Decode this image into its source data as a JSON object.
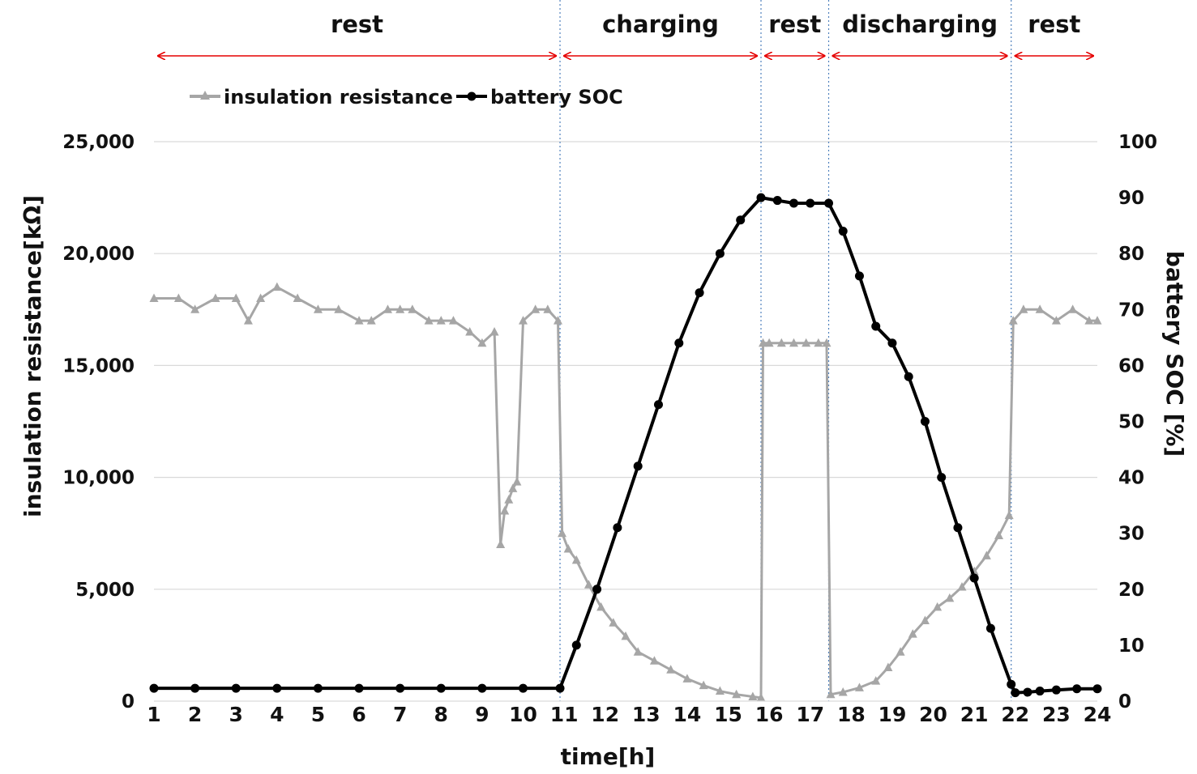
{
  "chart_data": {
    "type": "line",
    "xlabel": "time[h]",
    "ylabel": "insulation resistance[kΩ]",
    "y2label": "battery SOC [%]",
    "xlim": [
      1,
      24
    ],
    "ylim": [
      0,
      25000
    ],
    "y2lim": [
      0,
      100
    ],
    "x_ticks": [
      "1",
      "2",
      "3",
      "4",
      "5",
      "6",
      "7",
      "8",
      "9",
      "10",
      "11",
      "12",
      "13",
      "14",
      "15",
      "16",
      "17",
      "18",
      "19",
      "20",
      "21",
      "22",
      "23",
      "24"
    ],
    "y_ticks": [
      "0",
      "5,000",
      "10,000",
      "15,000",
      "20,000",
      "25,000"
    ],
    "y2_ticks": [
      "0",
      "10",
      "20",
      "30",
      "40",
      "50",
      "60",
      "70",
      "80",
      "90",
      "100"
    ],
    "grid": "horizontal",
    "legend_position": "top-left",
    "phase_boundaries": [
      10.9,
      15.8,
      17.45,
      21.9
    ],
    "phases": [
      {
        "label": "rest",
        "start": 1,
        "end": 10.9
      },
      {
        "label": "charging",
        "start": 10.9,
        "end": 15.8
      },
      {
        "label": "rest",
        "start": 15.8,
        "end": 17.45
      },
      {
        "label": "discharging",
        "start": 17.45,
        "end": 21.9
      },
      {
        "label": "rest",
        "start": 21.9,
        "end": 24
      }
    ],
    "series": [
      {
        "name": "insulation resistance",
        "axis": "left",
        "color": "#a6a6a6",
        "marker": "triangle",
        "x": [
          1,
          1.6,
          2.0,
          2.5,
          3.0,
          3.3,
          3.6,
          4.0,
          4.5,
          5.0,
          5.5,
          6.0,
          6.3,
          6.7,
          7.0,
          7.3,
          7.7,
          8.0,
          8.3,
          8.7,
          9.0,
          9.3,
          9.45,
          9.55,
          9.65,
          9.75,
          9.85,
          10.0,
          10.3,
          10.6,
          10.85,
          10.95,
          11.1,
          11.3,
          11.6,
          11.9,
          12.2,
          12.5,
          12.8,
          13.2,
          13.6,
          14.0,
          14.4,
          14.8,
          15.2,
          15.6,
          15.8,
          15.85,
          16.0,
          16.3,
          16.6,
          16.9,
          17.2,
          17.4,
          17.5,
          17.8,
          18.2,
          18.6,
          18.9,
          19.2,
          19.5,
          19.8,
          20.1,
          20.4,
          20.7,
          21.0,
          21.3,
          21.6,
          21.85,
          21.95,
          22.2,
          22.6,
          23.0,
          23.4,
          23.8,
          24.0
        ],
        "y": [
          18000,
          18000,
          17500,
          18000,
          18000,
          17000,
          18000,
          18500,
          18000,
          17500,
          17500,
          17000,
          17000,
          17500,
          17500,
          17500,
          17000,
          17000,
          17000,
          16500,
          16000,
          16500,
          7000,
          8500,
          9000,
          9500,
          9800,
          17000,
          17500,
          17500,
          17000,
          7500,
          6800,
          6300,
          5200,
          4200,
          3500,
          2900,
          2200,
          1800,
          1400,
          1000,
          700,
          450,
          300,
          200,
          150,
          16000,
          16000,
          16000,
          16000,
          16000,
          16000,
          16000,
          300,
          400,
          600,
          900,
          1500,
          2200,
          3000,
          3600,
          4200,
          4600,
          5100,
          5800,
          6500,
          7400,
          8300,
          17000,
          17500,
          17500,
          17000,
          17500,
          17000,
          17000
        ]
      },
      {
        "name": "battery SOC",
        "axis": "right",
        "color": "#000000",
        "marker": "circle",
        "x": [
          1,
          2,
          3,
          4,
          5,
          6,
          7,
          8,
          9,
          10,
          10.9,
          11.3,
          11.8,
          12.3,
          12.8,
          13.3,
          13.8,
          14.3,
          14.8,
          15.3,
          15.8,
          16.2,
          16.6,
          17.0,
          17.45,
          17.8,
          18.2,
          18.6,
          19.0,
          19.4,
          19.8,
          20.2,
          20.6,
          21.0,
          21.4,
          21.9,
          22.0,
          22.3,
          22.6,
          23.0,
          23.5,
          24.0
        ],
        "y": [
          2.3,
          2.3,
          2.3,
          2.3,
          2.3,
          2.3,
          2.3,
          2.3,
          2.3,
          2.3,
          2.3,
          10,
          20,
          31,
          42,
          53,
          64,
          73,
          80,
          86,
          90,
          89.5,
          89,
          89,
          89,
          84,
          76,
          67,
          64,
          58,
          50,
          40,
          31,
          22,
          13,
          3,
          1.5,
          1.6,
          1.8,
          2.0,
          2.2,
          2.2
        ]
      }
    ]
  }
}
